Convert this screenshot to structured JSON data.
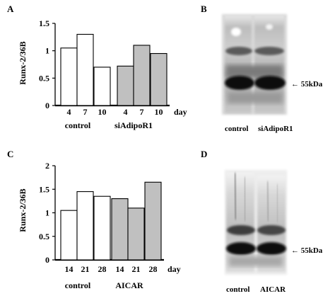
{
  "panels": {
    "A": {
      "letter": "A"
    },
    "B": {
      "letter": "B",
      "lane_labels": [
        "control",
        "siAdipoR1"
      ],
      "marker_label": "← 55kDa"
    },
    "C": {
      "letter": "C"
    },
    "D": {
      "letter": "D",
      "lane_labels": [
        "control",
        "AICAR"
      ],
      "marker_label": "← 55kDa"
    }
  },
  "chart_data": [
    {
      "type": "bar",
      "panel": "A",
      "title": "",
      "ylabel": "Runx-2/36B",
      "xlabel": "day",
      "ylim": [
        0,
        1.5
      ],
      "yticks": [
        0,
        0.5,
        1,
        1.5
      ],
      "ytick_labels": [
        "0",
        "0.5",
        "1",
        "1.5"
      ],
      "categories": [
        "4",
        "7",
        "10",
        "4",
        "7",
        "10"
      ],
      "groups": [
        "control",
        "siAdipoR1"
      ],
      "group_sizes": [
        3,
        3
      ],
      "values": [
        1.05,
        1.3,
        0.7,
        0.72,
        1.1,
        0.95
      ],
      "colors": [
        "#ffffff",
        "#ffffff",
        "#ffffff",
        "#c0c0c0",
        "#c0c0c0",
        "#c0c0c0"
      ],
      "grid": false,
      "legend": "none"
    },
    {
      "type": "bar",
      "panel": "C",
      "title": "",
      "ylabel": "Runx-2/36B",
      "xlabel": "day",
      "ylim": [
        0,
        2
      ],
      "yticks": [
        0,
        0.5,
        1,
        1.5,
        2
      ],
      "ytick_labels": [
        "0",
        "0.5",
        "1",
        "1.5",
        "2"
      ],
      "categories": [
        "14",
        "21",
        "28",
        "14",
        "21",
        "28"
      ],
      "groups": [
        "control",
        "AICAR"
      ],
      "group_sizes": [
        3,
        3
      ],
      "values": [
        1.05,
        1.45,
        1.35,
        1.3,
        1.1,
        1.65
      ],
      "colors": [
        "#ffffff",
        "#ffffff",
        "#ffffff",
        "#c0c0c0",
        "#c0c0c0",
        "#c0c0c0"
      ],
      "grid": false,
      "legend": "none"
    }
  ]
}
